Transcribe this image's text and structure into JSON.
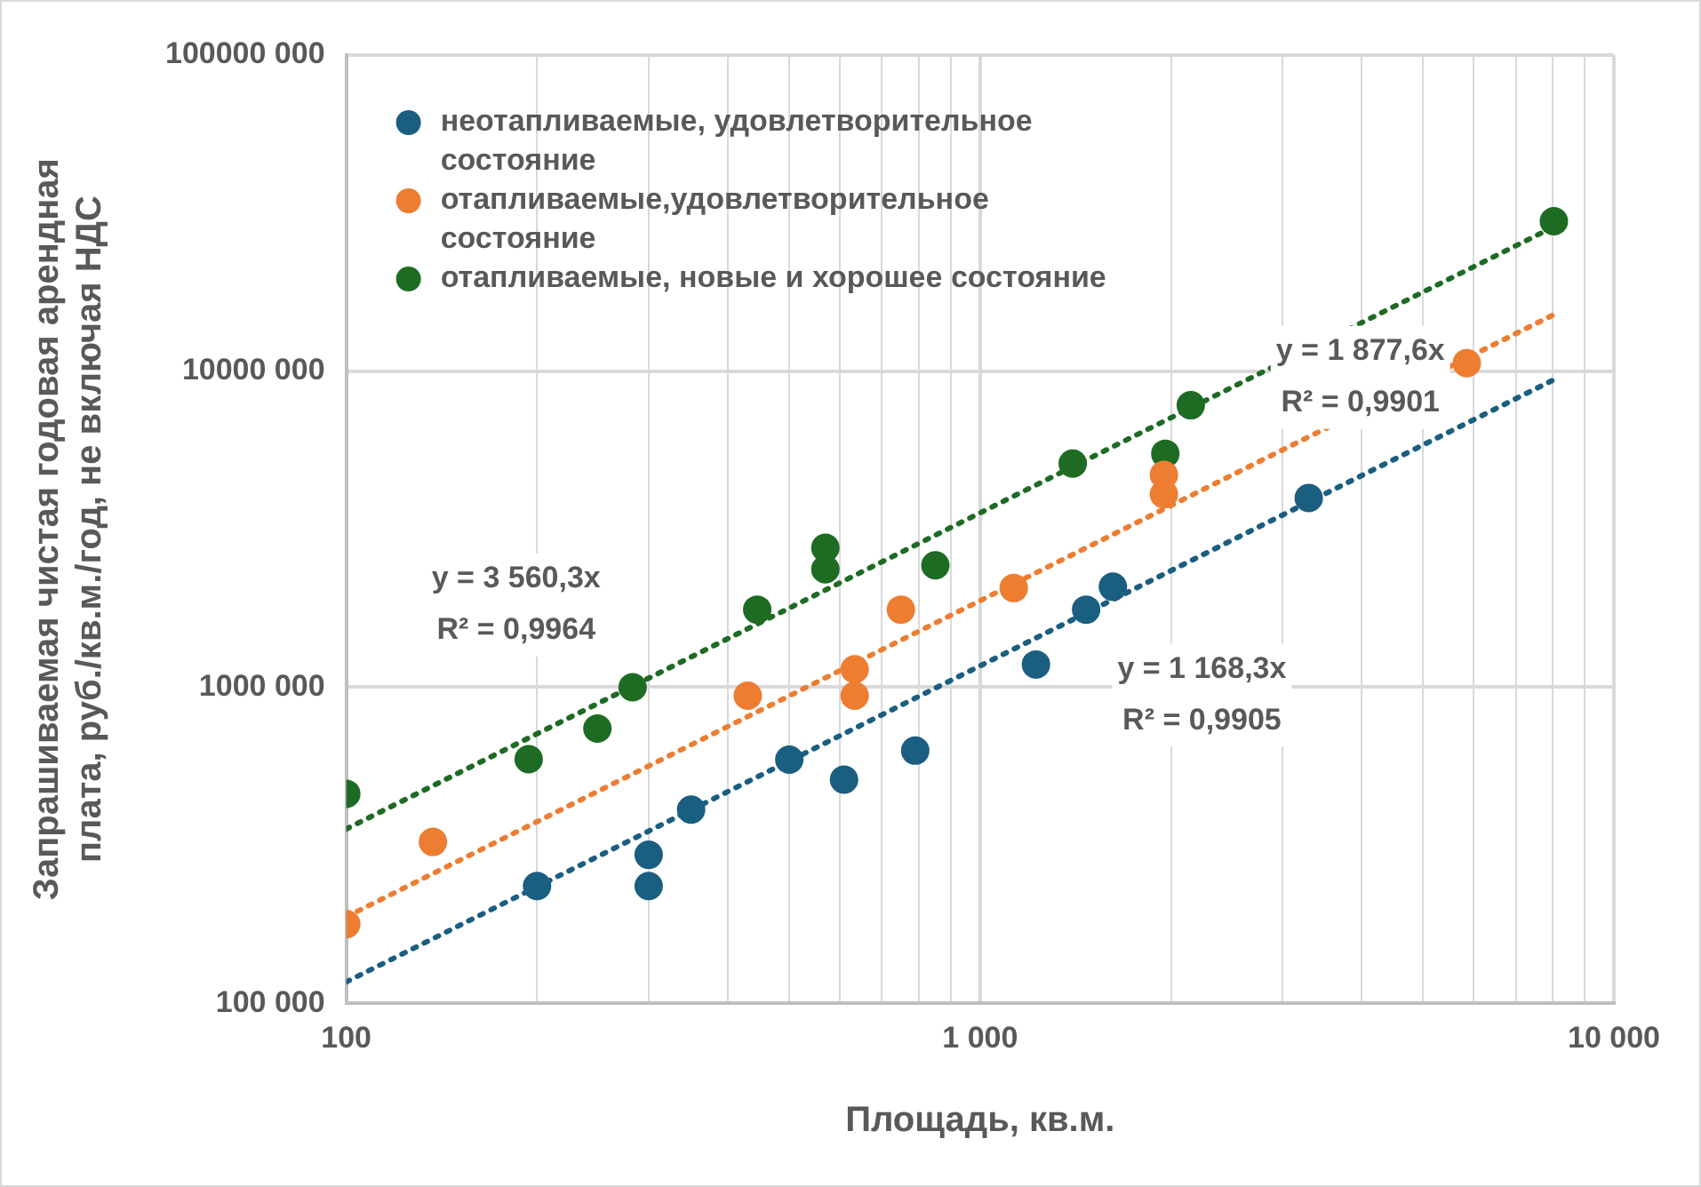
{
  "chart_data": {
    "type": "scatter",
    "xlabel": "Площадь, кв.м.",
    "ylabel": "Запрашиваемая чистая годовая арендная плата, руб./кв.м./год, не включая НДС",
    "log": "xy",
    "grid": true,
    "legend": "top left",
    "marker": "circle",
    "xlim": [
      100,
      10000
    ],
    "ylim": [
      100000,
      100000000
    ],
    "xticks": [
      100,
      {
        "value": 200,
        "label": null
      },
      {
        "value": 300,
        "label": null
      },
      {
        "value": 400,
        "label": null
      },
      {
        "value": 500,
        "label": null
      },
      {
        "value": 600,
        "label": null
      },
      {
        "value": 700,
        "label": null
      },
      {
        "value": 800,
        "label": null
      },
      {
        "value": 900,
        "label": null
      },
      {
        "value": 1000,
        "label": "1 000"
      },
      {
        "value": 2000,
        "label": null
      },
      {
        "value": 3000,
        "label": null
      },
      {
        "value": 4000,
        "label": null
      },
      {
        "value": 5000,
        "label": null
      },
      {
        "value": 6000,
        "label": null
      },
      {
        "value": 7000,
        "label": null
      },
      {
        "value": 8000,
        "label": null
      },
      {
        "value": 9000,
        "label": null
      },
      {
        "value": 10000,
        "label": "10 000"
      }
    ],
    "yticks": [
      {
        "value": 100000,
        "label": "100 000"
      },
      {
        "value": 1000000,
        "label": "1000 000"
      },
      {
        "value": 10000000,
        "label": "10000 000"
      },
      {
        "value": 100000000,
        "label": "100000 000"
      }
    ],
    "series": [
      {
        "name": "неотапливаемые, удовлетворительное состояние",
        "color": "#1a5e80",
        "x": [
          200,
          300,
          300,
          350,
          500,
          610,
          790,
          1225,
          1470,
          1620,
          3300
        ],
        "values": [
          235000,
          295000,
          235000,
          410000,
          590000,
          510000,
          630000,
          1180000,
          1760000,
          2080000,
          3970000
        ]
      },
      {
        "name": "отапливаемые,удовлетворительное состояние",
        "color": "#ed7d31",
        "x": [
          100,
          137,
          430,
          634,
          634,
          750,
          1130,
          1950,
          1950,
          5860
        ],
        "values": [
          178000,
          324000,
          940000,
          1140000,
          940000,
          1760000,
          2060000,
          4700000,
          4080000,
          10600000
        ]
      },
      {
        "name": "отапливаемые, новые и хорошее состояние",
        "color": "#1e6b24",
        "x": [
          100,
          194,
          249,
          283,
          445,
          570,
          570,
          850,
          1400,
          1960,
          2150,
          8040
        ],
        "values": [
          460000,
          592000,
          740000,
          1000000,
          1760000,
          2360000,
          2760000,
          2430000,
          5100000,
          5480000,
          7800000,
          29800000
        ]
      },
      {
        "type": "line",
        "color": "#1a5e80",
        "marker": "none",
        "line_style": "dotted",
        "x": [
          100,
          8200
        ],
        "values": [
          116830,
          9580060
        ]
      },
      {
        "type": "line",
        "color": "#ed7d31",
        "marker": "none",
        "line_style": "dotted",
        "x": [
          100,
          8200
        ],
        "values": [
          187760,
          15396320
        ]
      },
      {
        "type": "line",
        "color": "#1e6b24",
        "marker": "none",
        "line_style": "dotted",
        "x": [
          100,
          8200
        ],
        "values": [
          356030,
          29194460
        ]
      }
    ],
    "annotations": [
      "y = 3 560,3x\nR² = 0,9964",
      "y = 1 877,6x\nR² = 0,9901",
      "y = 1 168,3x\nR² = 0,9905"
    ]
  }
}
